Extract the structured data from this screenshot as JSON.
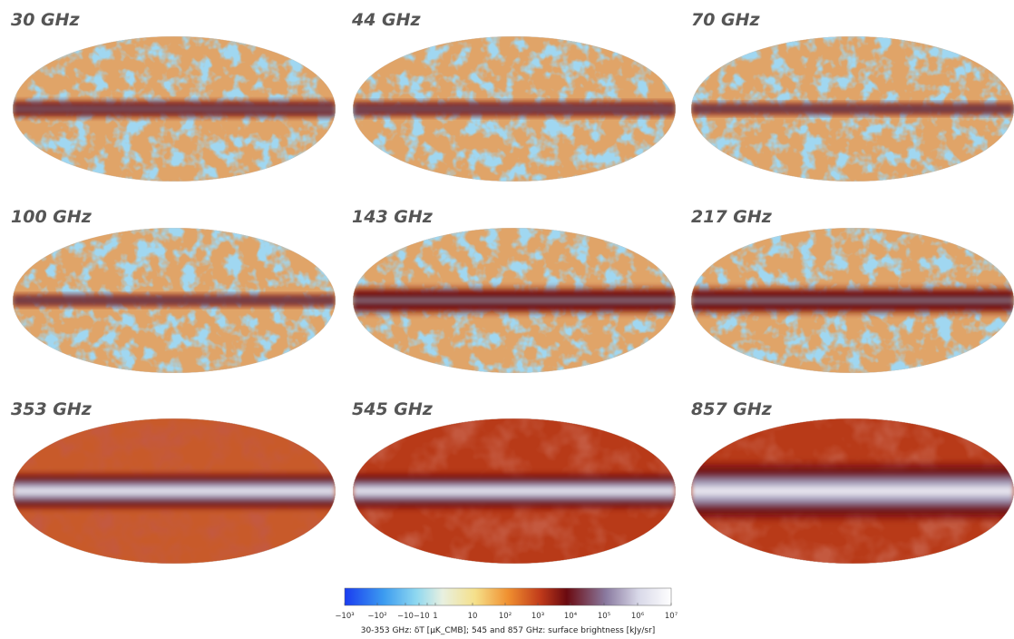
{
  "panels": [
    {
      "label": "30 GHz"
    },
    {
      "label": "44 GHz"
    },
    {
      "label": "70 GHz"
    },
    {
      "label": "100 GHz"
    },
    {
      "label": "143 GHz"
    },
    {
      "label": "217 GHz"
    },
    {
      "label": "353 GHz"
    },
    {
      "label": "545 GHz"
    },
    {
      "label": "857 GHz"
    }
  ],
  "colorbar": {
    "ticks": [
      "−10³",
      "−10²",
      "−10",
      "−1",
      "0",
      "1",
      "10",
      "10²",
      "10³",
      "10⁴",
      "10⁵",
      "10⁶",
      "10⁷"
    ],
    "caption": "30-353 GHz: δT [μK_CMB]; 545 and 857 GHz: surface brightness [kJy/sr]"
  }
}
